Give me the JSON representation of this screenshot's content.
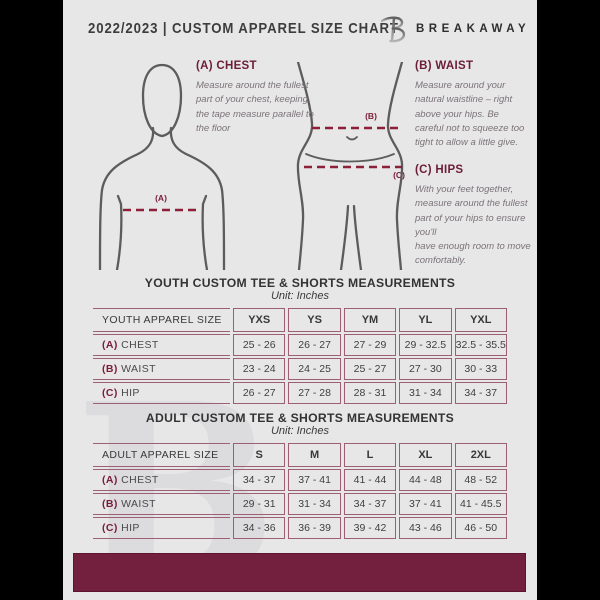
{
  "header": {
    "title": "2022/2023  |  CUSTOM APPAREL SIZE CHART",
    "brand": "BREAKAWAY"
  },
  "guide": {
    "marker_a": "(A)",
    "marker_b": "(B)",
    "marker_c": "(C)",
    "chest": {
      "heading": "(A) CHEST",
      "body": "Measure around the fullest part of your chest, keeping the tape measure parallel to the floor"
    },
    "waist": {
      "heading": "(B) WAIST",
      "body": "Measure around your natural waistline – right above your hips. Be careful not to squeeze too tight to allow a little give."
    },
    "hips": {
      "heading": "(C) HIPS",
      "body": "With your feet together, measure around the fullest part of your hips to ensure you'll\nhave enough room to move comfortably."
    }
  },
  "youth_table": {
    "title": "YOUTH CUSTOM TEE & SHORTS MEASUREMENTS",
    "unit": "Unit: Inches",
    "size_label": "YOUTH APPAREL SIZE",
    "columns": [
      "YXS",
      "YS",
      "YM",
      "YL",
      "YXL"
    ],
    "rows": [
      {
        "prefix": "(A)",
        "label": "CHEST",
        "values": [
          "25 - 26",
          "26 - 27",
          "27 - 29",
          "29 - 32.5",
          "32.5 - 35.5"
        ]
      },
      {
        "prefix": "(B)",
        "label": "WAIST",
        "values": [
          "23 - 24",
          "24 - 25",
          "25 - 27",
          "27 - 30",
          "30 - 33"
        ]
      },
      {
        "prefix": "(C)",
        "label": "HIP",
        "values": [
          "26 - 27",
          "27 - 28",
          "28 - 31",
          "31 - 34",
          "34 - 37"
        ]
      }
    ]
  },
  "adult_table": {
    "title": "ADULT CUSTOM TEE & SHORTS MEASUREMENTS",
    "unit": "Unit: Inches",
    "size_label": "ADULT APPAREL SIZE",
    "columns": [
      "S",
      "M",
      "L",
      "XL",
      "2XL"
    ],
    "rows": [
      {
        "prefix": "(A)",
        "label": "CHEST",
        "values": [
          "34 - 37",
          "37 - 41",
          "41 - 44",
          "44 - 48",
          "48 - 52"
        ]
      },
      {
        "prefix": "(B)",
        "label": "WAIST",
        "values": [
          "29 - 31",
          "31 - 34",
          "34 - 37",
          "37 - 41",
          "41 - 45.5"
        ]
      },
      {
        "prefix": "(C)",
        "label": "HIP",
        "values": [
          "34 - 36",
          "36 - 39",
          "39 - 42",
          "43 - 46",
          "46 - 50"
        ]
      }
    ]
  },
  "watermark": {
    "letter": "B"
  },
  "colors": {
    "accent_maroon": "#6b1d36",
    "dashed_line": "#8e1f39",
    "table_border": "#9d5f74",
    "footer_bar": "#72203d",
    "page_background": "#e7e7e8"
  }
}
